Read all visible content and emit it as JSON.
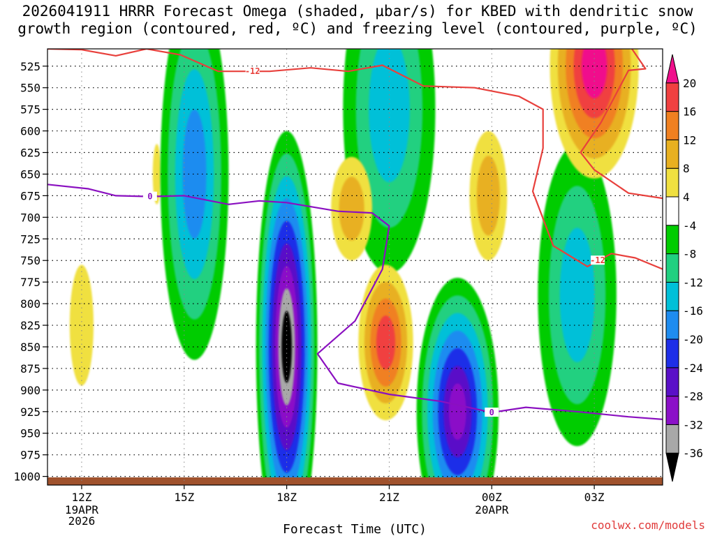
{
  "title_line1": "2026041911 HRRR Forecast Omega (shaded, µbar/s) for KBED with dendritic snow",
  "title_line2": "growth region (contoured, red, ºC) and freezing level (contoured, purple, ºC)",
  "credit": "coolwx.com/models",
  "chart_data": {
    "type": "heatmap",
    "title": "2026041911 HRRR Forecast Omega (shaded, µbar/s) for KBED with dendritic snow growth region (contoured, red, ºC) and freezing level (contoured, purple, ºC)",
    "xlabel": "Forecast Time (UTC)",
    "ylabel": "",
    "x_range_hours": [
      11,
      29
    ],
    "y_range_hPa": [
      1010,
      505
    ],
    "x_ticks": [
      {
        "hour": 12,
        "label": "12Z",
        "sublabels": [
          "19APR",
          "2026"
        ]
      },
      {
        "hour": 15,
        "label": "15Z",
        "sublabels": []
      },
      {
        "hour": 18,
        "label": "18Z",
        "sublabels": []
      },
      {
        "hour": 21,
        "label": "21Z",
        "sublabels": []
      },
      {
        "hour": 24,
        "label": "00Z",
        "sublabels": [
          "20APR"
        ]
      },
      {
        "hour": 27,
        "label": "03Z",
        "sublabels": []
      }
    ],
    "y_ticks": [
      525,
      550,
      575,
      600,
      625,
      650,
      675,
      700,
      725,
      750,
      775,
      800,
      825,
      850,
      875,
      900,
      925,
      950,
      975,
      1000
    ],
    "colorbar": {
      "levels": [
        -36,
        -32,
        -28,
        -24,
        -20,
        -16,
        -12,
        -8,
        -4,
        4,
        8,
        12,
        16,
        20
      ],
      "colors": [
        "#000000",
        "#a8a8a8",
        "#8b10c8",
        "#5a10c8",
        "#1e2ee8",
        "#1e8cf0",
        "#00c0d8",
        "#20d080",
        "#00cc00",
        "#ffffff",
        "#f0e040",
        "#e8b020",
        "#f08020",
        "#f04040",
        "#f0108c"
      ]
    },
    "omega_features": [
      {
        "center_hour": 12.0,
        "center_hPa": 825,
        "peak": 6
      },
      {
        "center_hour": 14.2,
        "center_hPa": 650,
        "peak": 6
      },
      {
        "center_hour": 15.3,
        "center_hPa": 650,
        "peak": -18
      },
      {
        "center_hour": 18.0,
        "center_hPa": 850,
        "peak": -36
      },
      {
        "center_hour": 21.0,
        "center_hPa": 575,
        "peak": -14
      },
      {
        "center_hour": 19.9,
        "center_hPa": 690,
        "peak": 9
      },
      {
        "center_hour": 20.9,
        "center_hPa": 845,
        "peak": 18
      },
      {
        "center_hour": 23.0,
        "center_hPa": 925,
        "peak": -30
      },
      {
        "center_hour": 23.9,
        "center_hPa": 675,
        "peak": 9
      },
      {
        "center_hour": 26.5,
        "center_hPa": 790,
        "peak": -14
      },
      {
        "center_hour": 27.0,
        "center_hPa": 525,
        "peak": 22
      }
    ],
    "dendritic_contour_label": "-12",
    "freezing_level_label": "0",
    "dendritic_minus12C_hPa": [
      {
        "hour": 11.0,
        "hPa": 505
      },
      {
        "hour": 12.0,
        "hPa": 506
      },
      {
        "hour": 13.0,
        "hPa": 513
      },
      {
        "hour": 13.9,
        "hPa": 505
      },
      {
        "hour": 14.9,
        "hPa": 512
      },
      {
        "hour": 16.0,
        "hPa": 531
      },
      {
        "hour": 17.5,
        "hPa": 531
      },
      {
        "hour": 18.7,
        "hPa": 527
      },
      {
        "hour": 19.8,
        "hPa": 531
      },
      {
        "hour": 20.8,
        "hPa": 524
      },
      {
        "hour": 22.0,
        "hPa": 548
      },
      {
        "hour": 23.5,
        "hPa": 550
      },
      {
        "hour": 24.8,
        "hPa": 560
      },
      {
        "hour": 25.5,
        "hPa": 575
      },
      {
        "hour": 25.5,
        "hPa": 620
      },
      {
        "hour": 25.2,
        "hPa": 670
      },
      {
        "hour": 25.8,
        "hPa": 733
      },
      {
        "hour": 26.8,
        "hPa": 757
      },
      {
        "hour": 27.5,
        "hPa": 742
      },
      {
        "hour": 28.2,
        "hPa": 747
      },
      {
        "hour": 29.0,
        "hPa": 760
      }
    ],
    "dendritic_minus12C_hPa_upper": [
      {
        "hour": 29.0,
        "hPa": 678
      },
      {
        "hour": 28.0,
        "hPa": 672
      },
      {
        "hour": 27.0,
        "hPa": 645
      },
      {
        "hour": 26.6,
        "hPa": 625
      },
      {
        "hour": 27.2,
        "hPa": 590
      },
      {
        "hour": 28.0,
        "hPa": 530
      },
      {
        "hour": 28.5,
        "hPa": 528
      },
      {
        "hour": 28.1,
        "hPa": 505
      }
    ],
    "freezing_level_0C_hPa": [
      {
        "hour": 11.0,
        "hPa": 662
      },
      {
        "hour": 12.2,
        "hPa": 667
      },
      {
        "hour": 13.0,
        "hPa": 675
      },
      {
        "hour": 14.0,
        "hPa": 676
      },
      {
        "hour": 15.0,
        "hPa": 675
      },
      {
        "hour": 16.3,
        "hPa": 685
      },
      {
        "hour": 17.2,
        "hPa": 681
      },
      {
        "hour": 18.0,
        "hPa": 683
      },
      {
        "hour": 19.5,
        "hPa": 693
      },
      {
        "hour": 20.5,
        "hPa": 695
      },
      {
        "hour": 21.0,
        "hPa": 710
      },
      {
        "hour": 20.8,
        "hPa": 760
      },
      {
        "hour": 20.0,
        "hPa": 820
      },
      {
        "hour": 18.9,
        "hPa": 858
      },
      {
        "hour": 19.5,
        "hPa": 892
      },
      {
        "hour": 21.0,
        "hPa": 905
      },
      {
        "hour": 22.5,
        "hPa": 913
      },
      {
        "hour": 24.0,
        "hPa": 926
      },
      {
        "hour": 25.0,
        "hPa": 920
      },
      {
        "hour": 26.5,
        "hPa": 925
      },
      {
        "hour": 28.0,
        "hPa": 931
      },
      {
        "hour": 29.0,
        "hPa": 934
      }
    ]
  }
}
